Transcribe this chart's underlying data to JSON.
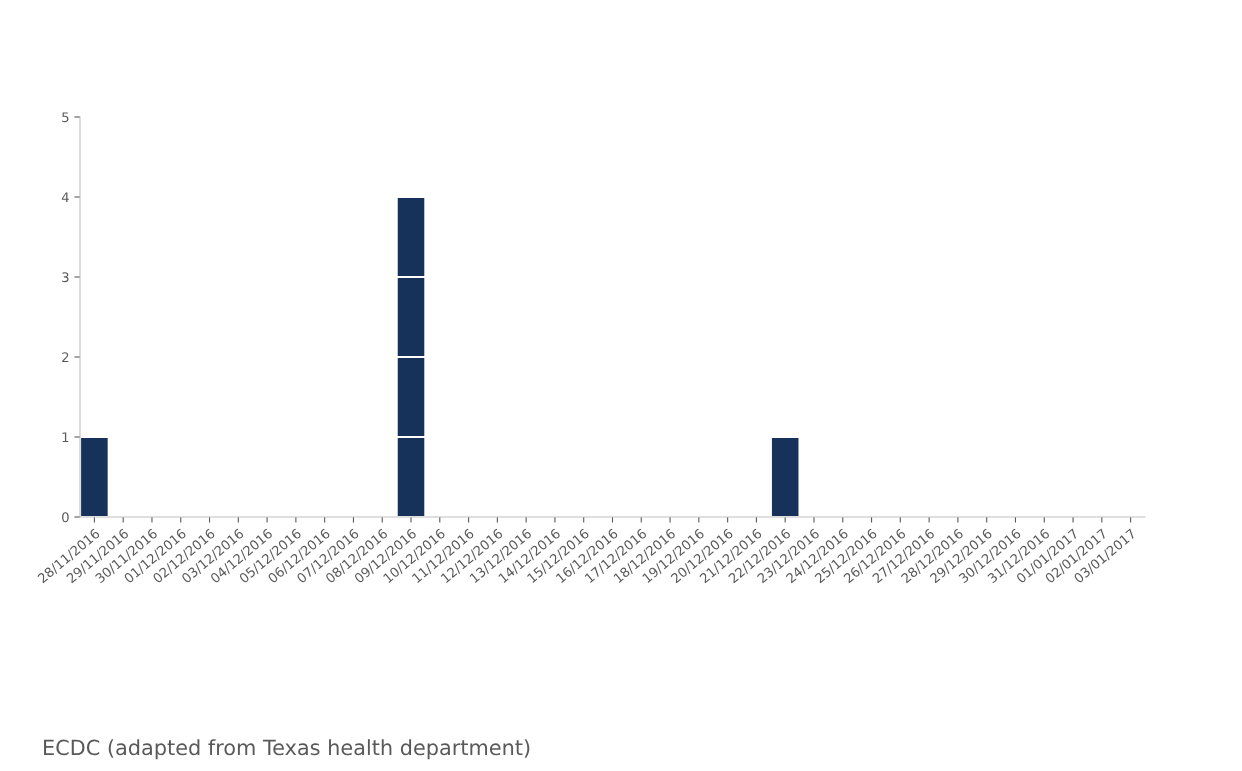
{
  "chart_data": {
    "type": "bar",
    "stacked": true,
    "categories": [
      "28/11/2016",
      "29/11/2016",
      "30/11/2016",
      "01/12/2016",
      "02/12/2016",
      "03/12/2016",
      "04/12/2016",
      "05/12/2016",
      "06/12/2016",
      "07/12/2016",
      "08/12/2016",
      "09/12/2016",
      "10/12/2016",
      "11/12/2016",
      "12/12/2016",
      "13/12/2016",
      "14/12/2016",
      "15/12/2016",
      "16/12/2016",
      "17/12/2016",
      "18/12/2016",
      "19/12/2016",
      "20/12/2016",
      "21/12/2016",
      "22/12/2016",
      "23/12/2016",
      "24/12/2016",
      "25/12/2016",
      "26/12/2016",
      "27/12/2016",
      "28/12/2016",
      "29/12/2016",
      "30/12/2016",
      "31/12/2016",
      "01/01/2017",
      "02/01/2017",
      "03/01/2017"
    ],
    "series": [
      {
        "color": "#17325a",
        "values": [
          1,
          0,
          0,
          0,
          0,
          0,
          0,
          0,
          0,
          0,
          0,
          1,
          0,
          0,
          0,
          0,
          0,
          0,
          0,
          0,
          0,
          0,
          0,
          0,
          1,
          0,
          0,
          0,
          0,
          0,
          0,
          0,
          0,
          0,
          0,
          0,
          0
        ]
      },
      {
        "color": "#17325a",
        "values": [
          0,
          0,
          0,
          0,
          0,
          0,
          0,
          0,
          0,
          0,
          0,
          1,
          0,
          0,
          0,
          0,
          0,
          0,
          0,
          0,
          0,
          0,
          0,
          0,
          0,
          0,
          0,
          0,
          0,
          0,
          0,
          0,
          0,
          0,
          0,
          0,
          0
        ]
      },
      {
        "color": "#17325a",
        "values": [
          0,
          0,
          0,
          0,
          0,
          0,
          0,
          0,
          0,
          0,
          0,
          1,
          0,
          0,
          0,
          0,
          0,
          0,
          0,
          0,
          0,
          0,
          0,
          0,
          0,
          0,
          0,
          0,
          0,
          0,
          0,
          0,
          0,
          0,
          0,
          0,
          0
        ]
      },
      {
        "color": "#17325a",
        "values": [
          0,
          0,
          0,
          0,
          0,
          0,
          0,
          0,
          0,
          0,
          0,
          1,
          0,
          0,
          0,
          0,
          0,
          0,
          0,
          0,
          0,
          0,
          0,
          0,
          0,
          0,
          0,
          0,
          0,
          0,
          0,
          0,
          0,
          0,
          0,
          0,
          0
        ]
      }
    ],
    "ylim": [
      0,
      5
    ],
    "yticks": [
      0,
      1,
      2,
      3,
      4,
      5
    ],
    "grid": false,
    "legend": false,
    "annotations": [
      "ECDC (adapted from Texas health department)"
    ]
  }
}
